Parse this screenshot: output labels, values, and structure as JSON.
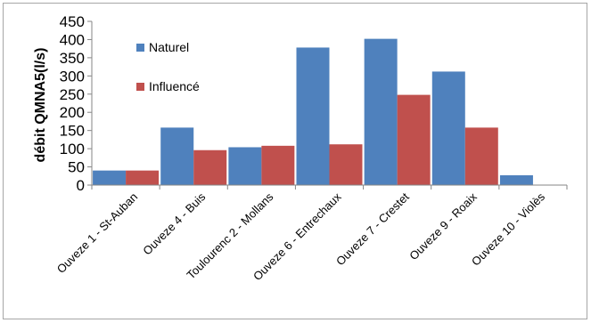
{
  "chart_data": {
    "type": "bar",
    "title": "",
    "xlabel": "",
    "ylabel": "débit QMNA5(l/s)",
    "ylim": [
      0,
      450
    ],
    "yticks": [
      0,
      50,
      100,
      150,
      200,
      250,
      300,
      350,
      400,
      450
    ],
    "categories": [
      "Ouveze 1 - St-Auban",
      "Ouveze 4 - Buis",
      "Toulourenc 2 - Mollans",
      "Ouveze 6 - Entrechaux",
      "Ouveze 7 - Crestet",
      "Ouveze 9 - Roaix",
      "Ouveze 10 - Violès"
    ],
    "series": [
      {
        "name": "Naturel",
        "color": "#4f81bd",
        "values": [
          40,
          158,
          104,
          378,
          402,
          312,
          27
        ]
      },
      {
        "name": "Influencé",
        "color": "#c0504d",
        "values": [
          40,
          96,
          108,
          112,
          248,
          158,
          0
        ]
      }
    ],
    "grid": false,
    "legend_position": "top-left-inside"
  }
}
